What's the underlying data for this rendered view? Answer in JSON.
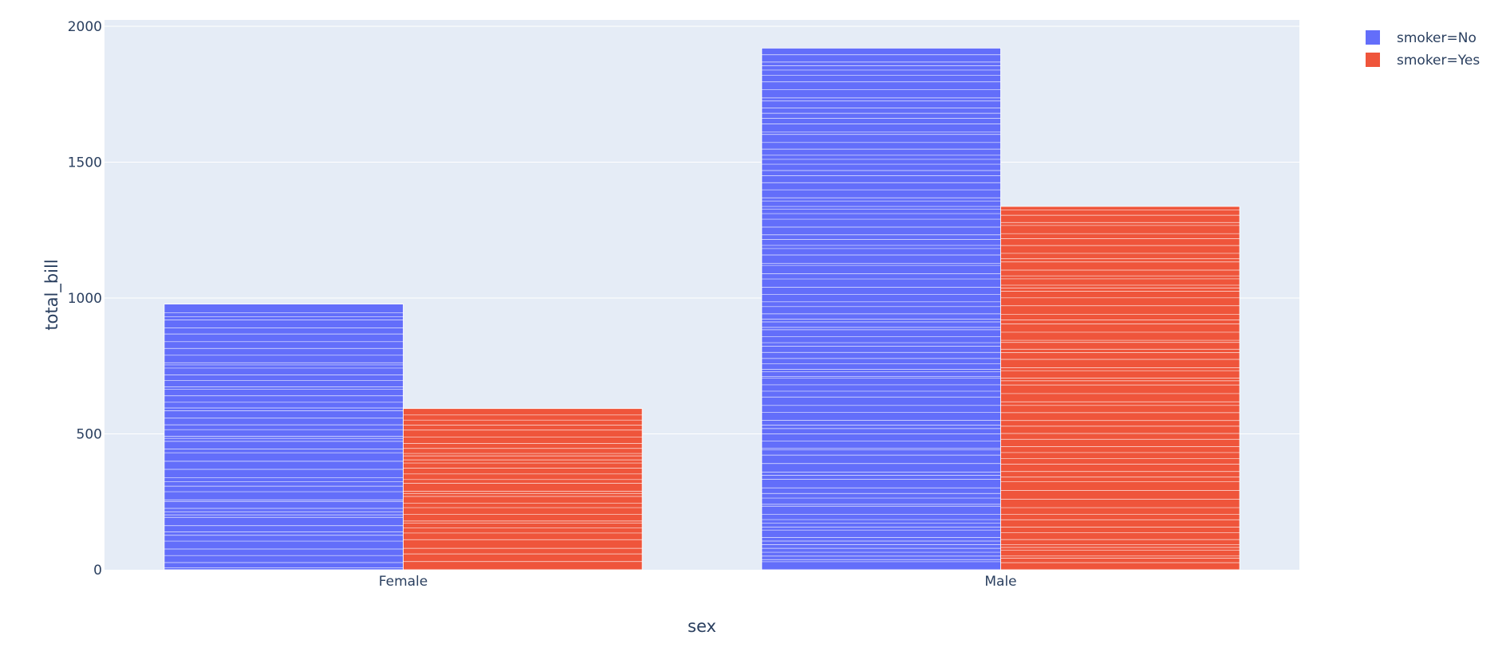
{
  "chart_data": {
    "type": "bar",
    "barmode": "group",
    "categories": [
      "Female",
      "Male"
    ],
    "series": [
      {
        "name": "smoker=No",
        "color": "#636efa",
        "values": [
          977.68,
          1919.75
        ]
      },
      {
        "name": "smoker=Yes",
        "color": "#ef553b",
        "values": [
          593.27,
          1337.07
        ]
      }
    ],
    "xlabel": "sex",
    "ylabel": "total_bill",
    "ylim": [
      0,
      2000
    ],
    "yticks": [
      0,
      500,
      1000,
      1500,
      2000
    ],
    "grid": true,
    "legend_position": "top-right",
    "plot_background": "#e5ecf6"
  }
}
